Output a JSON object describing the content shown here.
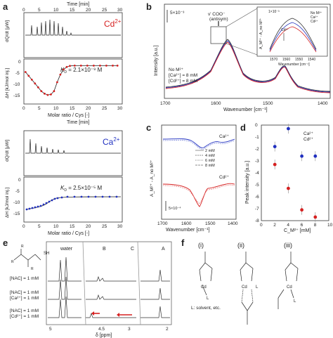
{
  "panels": {
    "a": {
      "label": "a",
      "time_axis": "Time [min]",
      "time_ticks": [
        "0",
        "5",
        "10",
        "15",
        "20",
        "25",
        "30"
      ],
      "molar_axis": "Molar ratio / Cys [-]",
      "molar_ticks": [
        "0",
        "5",
        "10",
        "15",
        "20",
        "25",
        "30"
      ],
      "ylabel_top": "dQ/dt [μW]",
      "ylabel_bottom": "ΔH [kJ/mol inj.]",
      "upper": {
        "ion": "Cd",
        "ion_sup": "2+",
        "ion_color": "#d62020",
        "kd": "K",
        "kd_sub": "D",
        "kd_val": " = 2.1×10⁻⁹ M",
        "enthalpy_ticks": [
          "0",
          "-5",
          "-10",
          "-15"
        ],
        "enthalpy_curve": {
          "type": "scatter",
          "x": [
            0.5,
            1.5,
            2.5,
            3.5,
            4.5,
            5.5,
            6.5,
            7.5,
            8.5,
            9.5,
            10.5,
            11.5,
            12.5,
            13.5,
            14.5,
            16,
            18,
            20,
            22,
            24,
            26,
            28,
            29.5
          ],
          "y": [
            -4,
            -5.5,
            -7,
            -8.5,
            -10,
            -11.5,
            -12.5,
            -13,
            -12.8,
            -11.5,
            -8,
            -5,
            -3,
            -2,
            -1.6,
            -1.5,
            -1.5,
            -1.5,
            -1.5,
            -1.5,
            -1.5,
            -1.5,
            -1.5
          ]
        }
      },
      "lower": {
        "ion": "Ca",
        "ion_sup": "2+",
        "ion_color": "#2030c0",
        "kd": "K",
        "kd_sub": "D",
        "kd_val": " = 2.5×10⁻⁵ M",
        "enthalpy_ticks": [
          "0",
          "-5",
          "-10",
          "-15"
        ]
      }
    },
    "b": {
      "label": "b",
      "xlabel": "Wavenumber [cm⁻¹]",
      "ylabel": "Intensity [a.u.]",
      "xticks": [
        "1700",
        "1600",
        "1500",
        "1400"
      ],
      "scale": "5×10⁻³",
      "peak_label": "ν' COO⁻",
      "peak_sub": "(antisym)",
      "legend": [
        {
          "text": "No M²⁺",
          "color": "#333"
        },
        {
          "text": "[Ca²⁺] = 8 mM",
          "color": "#2030c0"
        },
        {
          "text": "[Cd²⁺] = 8 mM",
          "color": "#d62020"
        }
      ],
      "inset": {
        "scale": "1×10⁻³",
        "ylabel": "A_M²⁺ - A_no M²⁺",
        "xlabel": "Wavenumber [cm⁻¹]",
        "xticks": [
          "1570",
          "1560",
          "1550",
          "1540"
        ],
        "legend": [
          "No M²⁺",
          "Ca²⁺",
          "Cd²⁺"
        ],
        "arrow_label": "Cd²⁺"
      }
    },
    "c": {
      "label": "c",
      "xlabel": "Wavenumber [cm⁻¹]",
      "ylabel": "A_M²⁺ - A_no M²⁺",
      "xticks": [
        "1700",
        "1600",
        "1500",
        "1400"
      ],
      "scale": "5×10⁻⁴",
      "ca_label": "Ca²⁺",
      "cd_label": "Cd²⁺",
      "legend": [
        "2 mM",
        "4 mM",
        "6 mM",
        "8 mM"
      ]
    },
    "d": {
      "label": "d",
      "xlabel": "C_M²⁺ [mM]",
      "ylabel": "Peak intensity [a.u.]",
      "legend": [
        {
          "text": "Ca²⁺",
          "color": "#2030c0"
        },
        {
          "text": "Cd²⁺",
          "color": "#d62020"
        }
      ],
      "chart_data": {
        "type": "scatter",
        "x": [
          2,
          4,
          6,
          8
        ],
        "series": [
          {
            "name": "Ca²⁺",
            "values": [
              -1.8,
              -0.3,
              -2.6,
              -2.6
            ],
            "color": "#2030c0"
          },
          {
            "name": "Cd²⁺",
            "values": [
              -3.3,
              -5.3,
              -7.1,
              -7.7
            ],
            "color": "#d62020"
          }
        ],
        "xlim": [
          0,
          10
        ],
        "ylim": [
          -8,
          0
        ],
        "xticks": [
          "0",
          "2",
          "4",
          "6",
          "8",
          "10"
        ],
        "yticks": [
          "0",
          "-1",
          "-2",
          "-3",
          "-4",
          "-5",
          "-6",
          "-7",
          "-8"
        ]
      }
    },
    "e": {
      "label": "e",
      "water": "water",
      "peaks": [
        "B",
        "C",
        "A"
      ],
      "rows": [
        {
          "lines": [
            {
              "t": "[NAC] = 1 mM",
              "c": "#222"
            }
          ]
        },
        {
          "lines": [
            {
              "t": "[NAC] = 1 mM",
              "c": "#222"
            },
            {
              "t": "[Ca²⁺] = 1 mM",
              "c": "#2030c0"
            }
          ]
        },
        {
          "lines": [
            {
              "t": "[NAC] = 1 mM",
              "c": "#222"
            },
            {
              "t": "[Cd²⁺] = 1 mM",
              "c": "#d62020"
            }
          ]
        }
      ],
      "xlabel": "δ [ppm]",
      "xticks": [
        "5",
        "4.5",
        "3",
        "2"
      ],
      "mol": {
        "sh": "SH",
        "ra": "R",
        "rb": "R",
        "rc": "R"
      }
    },
    "f": {
      "label": "f",
      "states": [
        "(i)",
        "(ii)",
        "(iii)"
      ],
      "metal": "Cd",
      "ligand": "L",
      "note": "L: solvent, etc."
    }
  }
}
